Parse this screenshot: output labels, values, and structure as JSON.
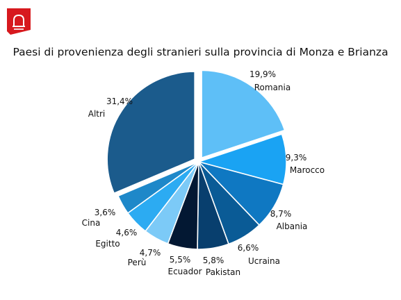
{
  "logo": {
    "icon": "bell-icon",
    "color": "#d7191e"
  },
  "chart_data": {
    "type": "pie",
    "title": "Paesi di provenienza degli stranieri sulla provincia di Monza e Brianza",
    "start_angle_deg": 0,
    "direction": "clockwise",
    "exploded": [
      "Romania",
      "Altri"
    ],
    "slices": [
      {
        "name": "Romania",
        "value": 19.9,
        "value_label": "19,9%",
        "color": "#5ebff7"
      },
      {
        "name": "Marocco",
        "value": 9.3,
        "value_label": "9,3%",
        "color": "#1aa3f3"
      },
      {
        "name": "Albania",
        "value": 8.7,
        "value_label": "8,7%",
        "color": "#0f78c2"
      },
      {
        "name": "Ucraina",
        "value": 6.6,
        "value_label": "6,6%",
        "color": "#0a5b96"
      },
      {
        "name": "Pakistan",
        "value": 5.8,
        "value_label": "5,8%",
        "color": "#083f6e"
      },
      {
        "name": "Ecuador",
        "value": 5.5,
        "value_label": "5,5%",
        "color": "#031833"
      },
      {
        "name": "Perù",
        "value": 4.7,
        "value_label": "4,7%",
        "color": "#7ccaf7"
      },
      {
        "name": "Egitto",
        "value": 4.6,
        "value_label": "4,6%",
        "color": "#2cabf2"
      },
      {
        "name": "Cina",
        "value": 3.6,
        "value_label": "3,6%",
        "color": "#1e88c9"
      },
      {
        "name": "Altri",
        "value": 31.4,
        "value_label": "31,4%",
        "color": "#1b5b8c"
      }
    ]
  }
}
